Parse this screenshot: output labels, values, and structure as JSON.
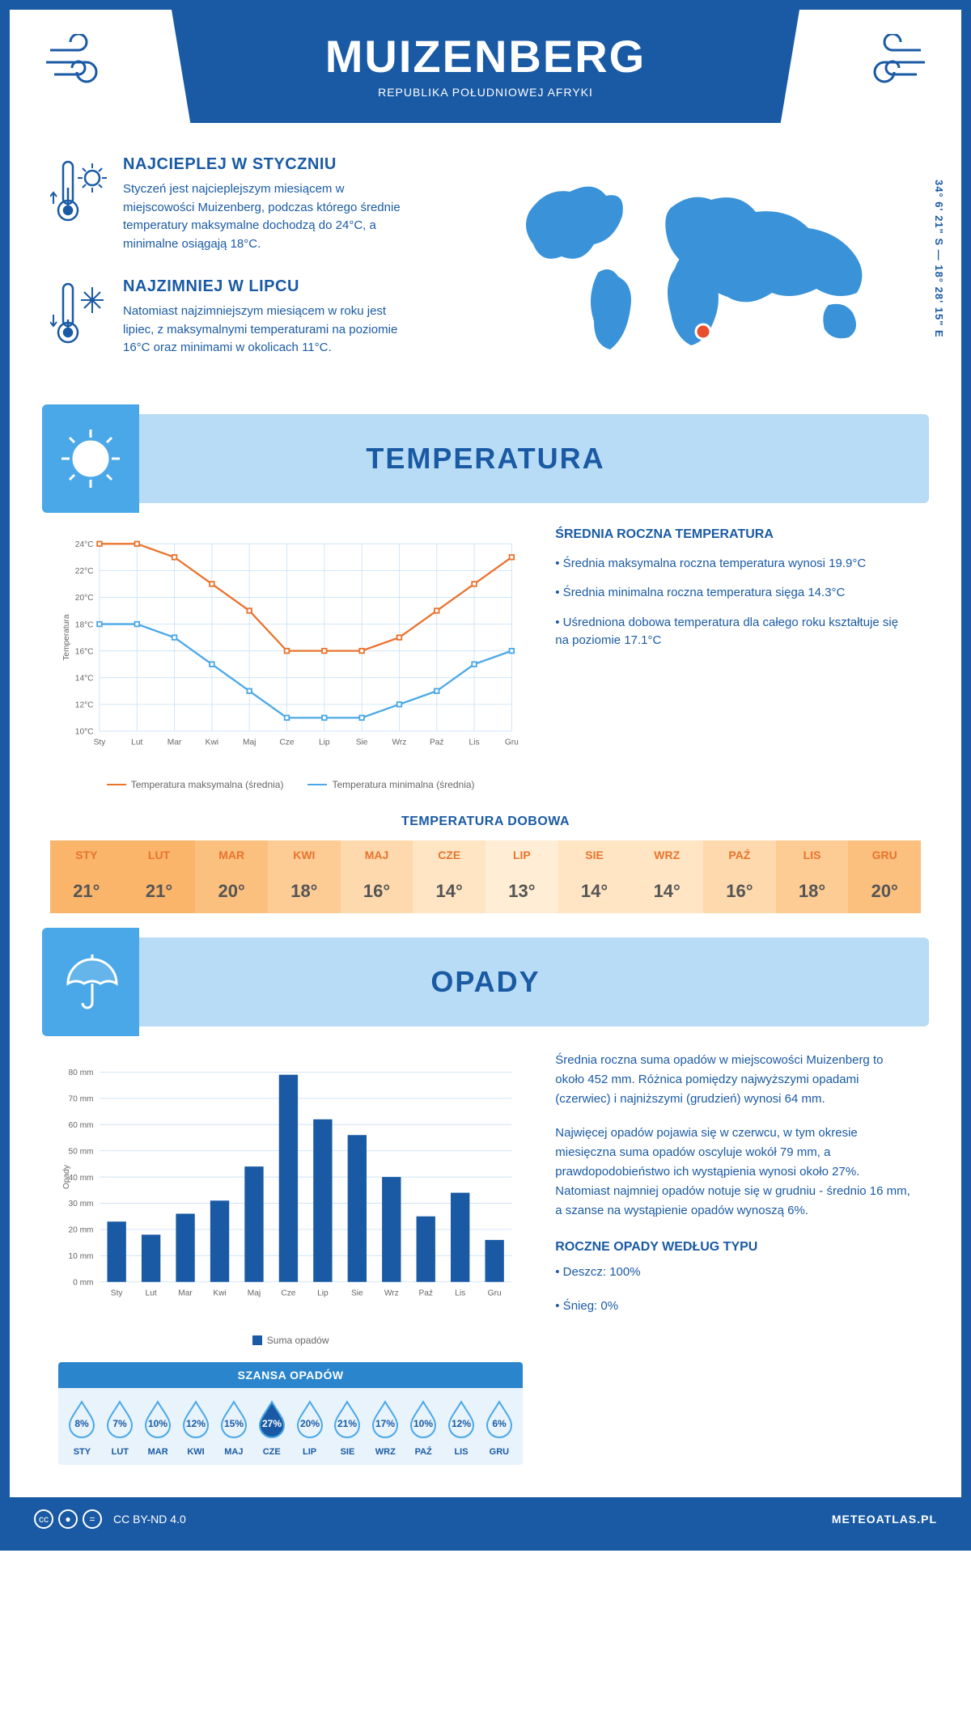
{
  "header": {
    "title": "MUIZENBERG",
    "subtitle": "REPUBLIKA POŁUDNIOWEJ AFRYKI",
    "coords": "34° 6' 21\" S — 18° 28' 15\" E"
  },
  "intro": {
    "warm": {
      "title": "NAJCIEPLEJ W STYCZNIU",
      "text": "Styczeń jest najcieplejszym miesiącem w miejscowości Muizenberg, podczas którego średnie temperatury maksymalne dochodzą do 24°C, a minimalne osiągają 18°C."
    },
    "cold": {
      "title": "NAJZIMNIEJ W LIPCU",
      "text": "Natomiast najzimniejszym miesiącem w roku jest lipiec, z maksymalnymi temperaturami na poziomie 16°C oraz minimami w okolicach 11°C."
    }
  },
  "map_marker_color": "#e94f2c",
  "temp_section": {
    "banner": "TEMPERATURA",
    "info_title": "ŚREDNIA ROCZNA TEMPERATURA",
    "bullet1": "• Średnia maksymalna roczna temperatura wynosi 19.9°C",
    "bullet2": "• Średnia minimalna roczna temperatura sięga 14.3°C",
    "bullet3": "• Uśredniona dobowa temperatura dla całego roku kształtuje się na poziomie 17.1°C",
    "chart": {
      "type": "line",
      "y_label": "Temperatura",
      "months": [
        "Sty",
        "Lut",
        "Mar",
        "Kwi",
        "Maj",
        "Cze",
        "Lip",
        "Sie",
        "Wrz",
        "Paź",
        "Lis",
        "Gru"
      ],
      "ylim": [
        10,
        24
      ],
      "ytick_step": 2,
      "grid_color": "#cfe3f5",
      "series": {
        "max": {
          "label": "Temperatura maksymalna (średnia)",
          "color": "#e8742e",
          "values": [
            24,
            24,
            23,
            21,
            19,
            16,
            16,
            16,
            17,
            19,
            21,
            23
          ]
        },
        "min": {
          "label": "Temperatura minimalna (średnia)",
          "color": "#4aa8e8",
          "values": [
            18,
            18,
            17,
            15,
            13,
            11,
            11,
            11,
            12,
            13,
            15,
            16
          ]
        }
      }
    },
    "daily_title": "TEMPERATURA DOBOWA",
    "daily": {
      "months": [
        "STY",
        "LUT",
        "MAR",
        "KWI",
        "MAJ",
        "CZE",
        "LIP",
        "SIE",
        "WRZ",
        "PAŹ",
        "LIS",
        "GRU"
      ],
      "values": [
        "21°",
        "21°",
        "20°",
        "18°",
        "16°",
        "14°",
        "13°",
        "14°",
        "14°",
        "16°",
        "18°",
        "20°"
      ],
      "colors": [
        "#fbb56b",
        "#fbb56b",
        "#fcc07e",
        "#fdcc95",
        "#fed9ad",
        "#ffe5c4",
        "#ffeed5",
        "#ffe5c4",
        "#ffe5c4",
        "#fed9ad",
        "#fdcc95",
        "#fcc07e"
      ]
    }
  },
  "precip_section": {
    "banner": "OPADY",
    "info_p1": "Średnia roczna suma opadów w miejscowości Muizenberg to około 452 mm. Różnica pomiędzy najwyższymi opadami (czerwiec) i najniższymi (grudzień) wynosi 64 mm.",
    "info_p2": "Najwięcej opadów pojawia się w czerwcu, w tym okresie miesięczna suma opadów oscyluje wokół 79 mm, a prawdopodobieństwo ich wystąpienia wynosi około 27%. Natomiast najmniej opadów notuje się w grudniu - średnio 16 mm, a szanse na wystąpienie opadów wynoszą 6%.",
    "type_title": "ROCZNE OPADY WEDŁUG TYPU",
    "type_rain": "• Deszcz: 100%",
    "type_snow": "• Śnieg: 0%",
    "chart": {
      "type": "bar",
      "y_label": "Opady",
      "legend": "Suma opadów",
      "months": [
        "Sty",
        "Lut",
        "Mar",
        "Kwi",
        "Maj",
        "Cze",
        "Lip",
        "Sie",
        "Wrz",
        "Paź",
        "Lis",
        "Gru"
      ],
      "values": [
        23,
        18,
        26,
        31,
        44,
        79,
        62,
        56,
        40,
        25,
        34,
        16
      ],
      "ylim": [
        0,
        80
      ],
      "ytick_step": 10,
      "bar_color": "#1a5aa4",
      "grid_color": "#cfe3f5"
    },
    "chance": {
      "title": "SZANSA OPADÓW",
      "months": [
        "STY",
        "LUT",
        "MAR",
        "KWI",
        "MAJ",
        "CZE",
        "LIP",
        "SIE",
        "WRZ",
        "PAŹ",
        "LIS",
        "GRU"
      ],
      "values": [
        "8%",
        "7%",
        "10%",
        "12%",
        "15%",
        "27%",
        "20%",
        "21%",
        "17%",
        "10%",
        "12%",
        "6%"
      ],
      "max_index": 5,
      "drop_outline": "#4aa8e8",
      "drop_fill": "#1a5aa4",
      "drop_text_outline": "#1a5aa4",
      "drop_text_fill": "#ffffff"
    }
  },
  "footer": {
    "license": "CC BY-ND 4.0",
    "site": "METEOATLAS.PL"
  },
  "palette": {
    "primary": "#1a5aa4",
    "light_blue": "#b8dcf5",
    "mid_blue": "#4aa8e8",
    "orange": "#e8742e"
  }
}
